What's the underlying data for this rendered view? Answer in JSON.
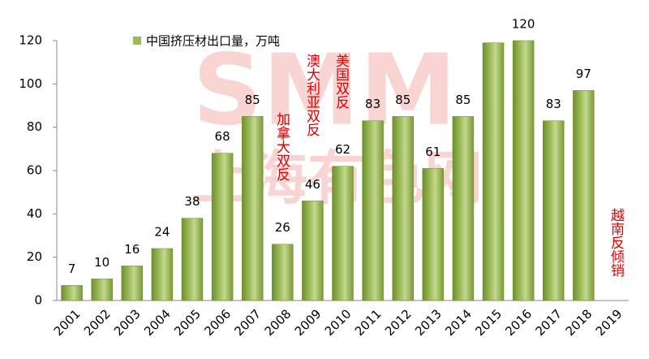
{
  "chart_data": {
    "type": "bar",
    "categories": [
      "2001",
      "2002",
      "2003",
      "2004",
      "2005",
      "2006",
      "2007",
      "2008",
      "2009",
      "2010",
      "2011",
      "2012",
      "2013",
      "2014",
      "2015",
      "2016",
      "2017",
      "2018",
      "2019"
    ],
    "series": [
      {
        "name": "中国挤压材出口量，万吨",
        "color": "#9bbb59",
        "values": [
          7,
          10,
          16,
          24,
          38,
          68,
          85,
          26,
          46,
          62,
          83,
          85,
          61,
          85,
          119,
          120,
          83,
          97,
          null
        ],
        "value_labels": [
          "7",
          "10",
          "16",
          "24",
          "38",
          "68",
          "85",
          "26",
          "46",
          "62",
          "83",
          "85",
          "61",
          "85",
          null,
          "120",
          "83",
          "97",
          null
        ]
      }
    ],
    "ylim": [
      0,
      120
    ],
    "yticks": [
      0,
      20,
      40,
      60,
      80,
      100,
      120
    ],
    "annotations": [
      "加拿大双反",
      "澳大利亚双反",
      "美国双反",
      "越南反倾销"
    ],
    "watermark": [
      "SMM",
      "上海有色网"
    ]
  }
}
